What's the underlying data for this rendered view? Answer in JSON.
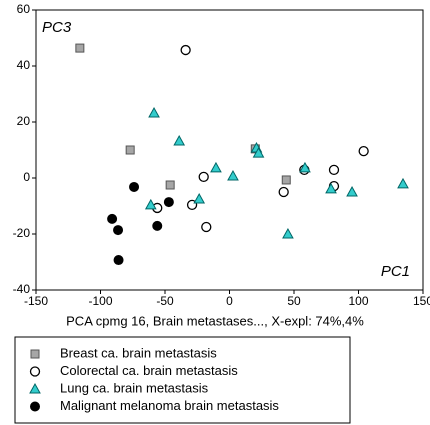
{
  "chart_data": {
    "type": "scatter",
    "x_label": "PCA cpmg 16, Brain metastases..., X-expl: 74%,4%",
    "x_axis_title": "PC1",
    "y_axis_title": "PC3",
    "xlim": [
      -150,
      150
    ],
    "xticks": [
      -150,
      -100,
      -50,
      0,
      50,
      100,
      150
    ],
    "ylim": [
      -40,
      60
    ],
    "yticks": [
      -40,
      -20,
      0,
      20,
      40,
      60
    ],
    "series": [
      {
        "name": "Breast ca. brain metastasis",
        "color": "#a6a6a6",
        "marker": "square",
        "x": [
          -116,
          -77,
          -46,
          20,
          44
        ],
        "values": [
          46.4,
          10,
          -2.5,
          10.4,
          -0.7
        ]
      },
      {
        "name": "Colorectal ca. brain metastasis",
        "color": "#ffffff",
        "marker": "circle",
        "x": [
          -34,
          -56,
          -20,
          -29,
          -18,
          42,
          58,
          81,
          81,
          104
        ],
        "values": [
          45.7,
          -10.7,
          0.4,
          -9.6,
          -17.5,
          -5,
          2.9,
          2.9,
          -2.9,
          9.6
        ]
      },
      {
        "name": "Lung ca. brain metastasis",
        "color": "#33cccc",
        "marker": "triangle",
        "x": [
          -58.5,
          -39,
          -10.5,
          2.7,
          -61,
          -23.5,
          20.9,
          22.5,
          45.3,
          58.5,
          78.7,
          95,
          134.5
        ],
        "values": [
          23.2,
          13.2,
          3.6,
          0.7,
          -9.6,
          -7.5,
          10.7,
          8.9,
          -20,
          3.6,
          -3.9,
          -5,
          -2.1
        ]
      },
      {
        "name": "Malignant melanoma brain metastasis",
        "color": "#000000",
        "marker": "dot",
        "x": [
          -74,
          -91,
          -86.4,
          -86,
          -56,
          -47
        ],
        "values": [
          -3.2,
          -14.6,
          -18.6,
          -29.3,
          -17.1,
          -8.6
        ]
      }
    ]
  }
}
